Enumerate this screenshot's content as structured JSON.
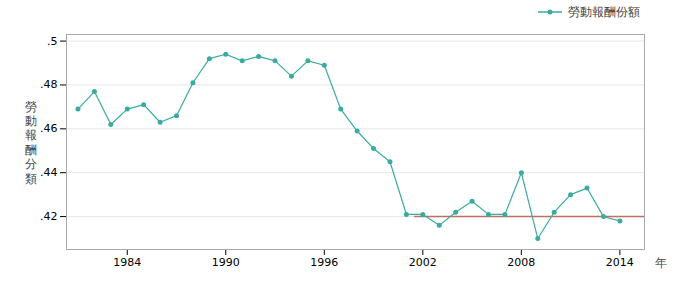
{
  "chart_data": {
    "type": "line",
    "ylabel": "勞\n動\n報\n酬\n分\n類",
    "xlabel": "年",
    "x": [
      1981,
      1982,
      1983,
      1984,
      1985,
      1986,
      1987,
      1988,
      1989,
      1990,
      1991,
      1992,
      1993,
      1994,
      1995,
      1996,
      1997,
      1998,
      1999,
      2000,
      2001,
      2002,
      2003,
      2004,
      2005,
      2006,
      2007,
      2008,
      2009,
      2010,
      2011,
      2012,
      2013,
      2014
    ],
    "series": [
      {
        "name": "勞動報酬份額",
        "color": "#3aaba0",
        "marker": "circle",
        "values": [
          0.469,
          0.477,
          0.462,
          0.469,
          0.471,
          0.463,
          0.466,
          0.481,
          0.492,
          0.494,
          0.491,
          0.493,
          0.491,
          0.484,
          0.491,
          0.489,
          0.469,
          0.459,
          0.451,
          0.445,
          0.421,
          0.421,
          0.416,
          0.422,
          0.427,
          0.421,
          0.421,
          0.44,
          0.41,
          0.422,
          0.43,
          0.433,
          0.42,
          0.418
        ]
      }
    ],
    "reference_line": {
      "value": 0.42,
      "x_start": 2001.5,
      "color": "#c07060"
    },
    "xlim": [
      1980.3,
      2015.5
    ],
    "xticks": [
      1984,
      1990,
      1996,
      2002,
      2008,
      2014
    ],
    "ylim": [
      0.405,
      0.503
    ],
    "yticks": [
      {
        "value": 0.42,
        "label": ".42"
      },
      {
        "value": 0.44,
        "label": ".44"
      },
      {
        "value": 0.46,
        "label": ".46"
      },
      {
        "value": 0.48,
        "label": ".48"
      },
      {
        "value": 0.5,
        "label": ".5"
      }
    ],
    "grid": true,
    "legend": "upper right"
  }
}
